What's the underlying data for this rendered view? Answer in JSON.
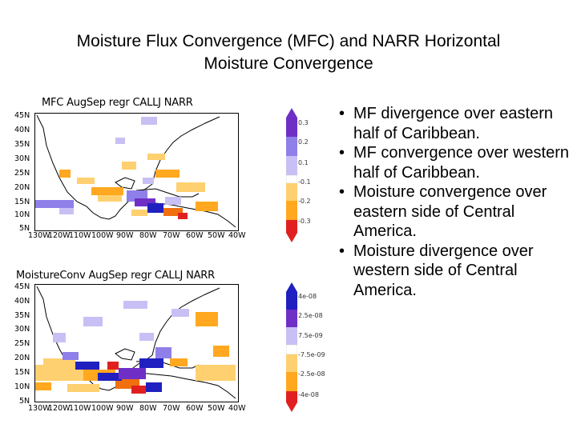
{
  "slide": {
    "title_line1": "Moisture Flux Convergence (MFC) and NARR Horizontal",
    "title_line2": "Moisture Convergence"
  },
  "colors": {
    "purple_dark": "#6f2fc7",
    "purple_mid": "#8f7fe8",
    "purple_light": "#c8c0f4",
    "blue_dark": "#2020c0",
    "orange_light": "#ffd070",
    "orange_mid": "#ffa820",
    "orange_dark": "#f07010",
    "red_dark": "#e02020",
    "coastline": "#000000"
  },
  "map_top": {
    "title": "MFC AugSep regr CALLJ NARR",
    "lat_labels": [
      "45N",
      "40N",
      "35N",
      "30N",
      "25N",
      "20N",
      "15N",
      "10N",
      "5N"
    ],
    "lon_labels": [
      "130W",
      "120W",
      "110W",
      "100W",
      "90W",
      "80W",
      "70W",
      "60W",
      "50W",
      "40W"
    ],
    "colorbar_labels": [
      "0.3",
      "0.2",
      "0.1",
      "-0.1",
      "-0.2",
      "-0.3"
    ]
  },
  "map_bottom": {
    "title": "MoistureConv AugSep regr CALLJ NARR",
    "lat_labels": [
      "45N",
      "40N",
      "35N",
      "30N",
      "25N",
      "20N",
      "15N",
      "10N",
      "5N"
    ],
    "lon_labels": [
      "130W",
      "120W",
      "110W",
      "100W",
      "90W",
      "80W",
      "70W",
      "60W",
      "50W",
      "40W"
    ],
    "colorbar_labels": [
      "4e-08",
      "2.5e-08",
      "7.5e-09",
      "-7.5e-09",
      "-2.5e-08",
      "-4e-08"
    ]
  },
  "bullets": [
    "MF divergence over eastern half of Caribbean.",
    "MF convergence over western half of Caribbean.",
    "Moisture convergence over eastern side of Central America.",
    "Moisture divergence over western side of Central America."
  ]
}
